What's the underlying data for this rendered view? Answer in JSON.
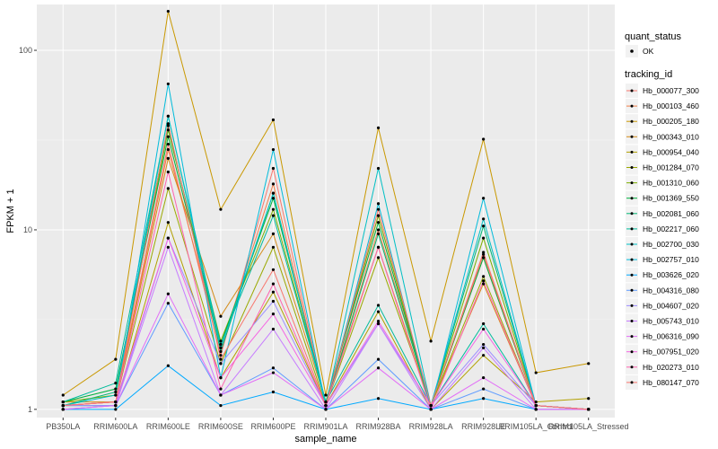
{
  "chart_data": {
    "type": "line",
    "xlabel": "sample_name",
    "ylabel": "FPKM + 1",
    "y_scale": "log10",
    "ylim": [
      0.9,
      180
    ],
    "y_ticks": [
      {
        "value": 1,
        "label": "1"
      },
      {
        "value": 10,
        "label": "10"
      },
      {
        "value": 100,
        "label": "100"
      }
    ],
    "categories": [
      "PB350LA",
      "RRIM600LA",
      "RRIM600LE",
      "RRIM600SE",
      "RRIM600PE",
      "RRIM901LA",
      "RRIM928BA",
      "RRIM928LA",
      "RRIM928LE",
      "RRIM105LA_Control",
      "RRIM105LA_Stressed"
    ],
    "grid": true,
    "legend_position": "right",
    "point_legend": {
      "title": "quant_status",
      "items": [
        "OK"
      ]
    },
    "line_legend_title": "tracking_id",
    "series": [
      {
        "name": "Hb_000077_300",
        "color": "#F8766D",
        "values": [
          1.05,
          1.1,
          30,
          2.0,
          22,
          1.05,
          12,
          1.05,
          7.5,
          1.05,
          1.0
        ]
      },
      {
        "name": "Hb_000103_460",
        "color": "#F07D48",
        "values": [
          1.05,
          1.1,
          28,
          2.2,
          18,
          1.05,
          10,
          1.05,
          7.0,
          1.05,
          1.0
        ]
      },
      {
        "name": "Hb_000205_180",
        "color": "#C99800",
        "values": [
          1.2,
          1.9,
          165,
          13,
          41,
          1.2,
          37,
          2.4,
          32,
          1.6,
          1.8
        ]
      },
      {
        "name": "Hb_000343_010",
        "color": "#D48C1A",
        "values": [
          1.1,
          1.1,
          25,
          3.3,
          9.5,
          1.1,
          8.0,
          1.05,
          5.0,
          1.05,
          1.0
        ]
      },
      {
        "name": "Hb_000954_040",
        "color": "#B2A000",
        "values": [
          1.05,
          1.05,
          11,
          1.5,
          4.5,
          1.05,
          3.5,
          1.0,
          2.0,
          1.1,
          1.15
        ]
      },
      {
        "name": "Hb_001284_070",
        "color": "#9AA800",
        "values": [
          1.05,
          1.1,
          17,
          1.8,
          8.0,
          1.05,
          7.0,
          1.05,
          5.5,
          1.05,
          1.0
        ]
      },
      {
        "name": "Hb_001310_060",
        "color": "#7CAE00",
        "values": [
          1.1,
          1.2,
          36,
          2.4,
          13,
          1.1,
          12,
          1.05,
          9.0,
          1.05,
          1.0
        ]
      },
      {
        "name": "Hb_001369_550",
        "color": "#00B13F",
        "values": [
          1.1,
          1.3,
          33,
          2.3,
          15,
          1.1,
          11,
          1.05,
          7.0,
          1.05,
          1.0
        ]
      },
      {
        "name": "Hb_002081_060",
        "color": "#00B573",
        "values": [
          1.05,
          1.25,
          38,
          2.1,
          16,
          1.05,
          9.5,
          1.05,
          10.5,
          1.05,
          1.0
        ]
      },
      {
        "name": "Hb_002217_060",
        "color": "#00BB9B",
        "values": [
          1.1,
          1.4,
          43,
          2.3,
          12,
          1.1,
          3.8,
          1.05,
          3.0,
          1.05,
          1.0
        ]
      },
      {
        "name": "Hb_002700_030",
        "color": "#00BFC4",
        "values": [
          1.05,
          1.2,
          43,
          2.2,
          16,
          1.05,
          22,
          1.05,
          11.5,
          1.05,
          1.0
        ]
      },
      {
        "name": "Hb_002757_010",
        "color": "#00BBDA",
        "values": [
          1.05,
          1.05,
          65,
          1.5,
          28,
          1.05,
          14,
          1.0,
          15,
          1.05,
          1.0
        ]
      },
      {
        "name": "Hb_003626_020",
        "color": "#00A9FF",
        "values": [
          1.0,
          1.0,
          1.75,
          1.05,
          1.25,
          1.0,
          1.15,
          1.0,
          1.15,
          1.0,
          1.0
        ]
      },
      {
        "name": "Hb_004316_080",
        "color": "#619CFF",
        "values": [
          1.0,
          1.05,
          3.9,
          1.2,
          1.7,
          1.0,
          1.9,
          1.0,
          1.3,
          1.0,
          1.0
        ]
      },
      {
        "name": "Hb_004607_020",
        "color": "#9D8EFF",
        "values": [
          1.05,
          1.05,
          9.0,
          1.8,
          4.0,
          1.05,
          3.0,
          1.05,
          2.3,
          1.05,
          1.0
        ]
      },
      {
        "name": "Hb_005743_010",
        "color": "#C77CFF",
        "values": [
          1.0,
          1.05,
          8.0,
          1.2,
          2.8,
          1.0,
          3.0,
          1.0,
          2.2,
          1.0,
          1.0
        ]
      },
      {
        "name": "Hb_006316_090",
        "color": "#E26EF7",
        "values": [
          1.0,
          1.05,
          4.4,
          1.2,
          1.6,
          1.0,
          1.7,
          1.0,
          1.5,
          1.0,
          1.0
        ]
      },
      {
        "name": "Hb_007951_020",
        "color": "#F564E3",
        "values": [
          1.05,
          1.1,
          9.0,
          1.5,
          3.4,
          1.05,
          3.1,
          1.05,
          2.8,
          1.05,
          1.0
        ]
      },
      {
        "name": "Hb_020273_010",
        "color": "#FF64B0",
        "values": [
          1.05,
          1.1,
          21,
          1.3,
          5.0,
          1.05,
          8.0,
          1.0,
          5.2,
          1.05,
          1.0
        ]
      },
      {
        "name": "Hb_080147_070",
        "color": "#F8766D",
        "values": [
          1.05,
          1.1,
          39,
          1.9,
          6.0,
          1.05,
          13,
          1.05,
          7.3,
          1.05,
          1.0
        ]
      }
    ]
  },
  "colors": {
    "panel_bg": "#EBEBEB",
    "grid_major": "#FFFFFF",
    "point": "#000000"
  }
}
